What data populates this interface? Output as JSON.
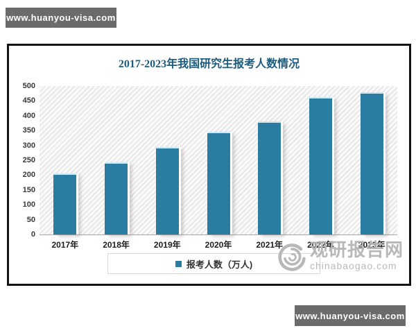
{
  "watermark_top": {
    "text": "www.huanyou-visa.com"
  },
  "watermark_bottom": {
    "text": "www.huanyou-visa.com"
  },
  "brand_watermark": {
    "name": "观研报告网",
    "domain": "chinabaogao.com"
  },
  "chart_data": {
    "type": "bar",
    "title": "2017-2023年我国研究生报考人数情况",
    "categories": [
      "2017年",
      "2018年",
      "2019年",
      "2020年",
      "2021年",
      "2022年",
      "2023年"
    ],
    "values": [
      201,
      238,
      290,
      341,
      377,
      457,
      474
    ],
    "legend": "报考人数（万人)",
    "xlabel": "",
    "ylabel": "",
    "ylim": [
      0,
      500
    ],
    "ytick_step": 50,
    "grid": false,
    "legend_position": "bottom",
    "colors": {
      "bar": "#2b7ca1",
      "title": "#1c5c7e"
    }
  }
}
